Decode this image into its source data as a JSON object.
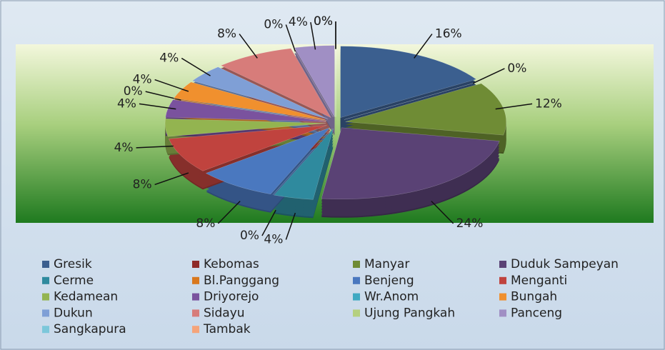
{
  "chart_data": {
    "type": "pie",
    "categories": [
      "Gresik",
      "Kebomas",
      "Manyar",
      "Duduk Sampeyan",
      "Cerme",
      "Bl.Panggang",
      "Benjeng",
      "Menganti",
      "Kedamean",
      "Driyorejo",
      "Wr.Anom",
      "Bungah",
      "Dukun",
      "Sidayu",
      "Ujung Pangkah",
      "Panceng",
      "Sangkapura",
      "Tambak"
    ],
    "values": [
      16,
      0,
      12,
      24,
      4,
      0,
      8,
      8,
      4,
      4,
      0,
      4,
      4,
      8,
      0,
      4,
      0,
      0
    ],
    "value_labels": [
      "16%",
      "0%",
      "12%",
      "24%",
      "4%",
      "0%",
      "8%",
      "8%",
      "4%",
      "4%",
      "0%",
      "4%",
      "4%",
      "8%",
      "0%",
      "4%",
      "0%",
      "0%"
    ],
    "colors": [
      "#3b5f8f",
      "#8e2a28",
      "#6f8c35",
      "#5a4275",
      "#2f8a9e",
      "#d9781e",
      "#4a78bf",
      "#c0433e",
      "#93b450",
      "#7a529e",
      "#3fa9c2",
      "#f0902e",
      "#7f9fd6",
      "#d77c7a",
      "#b5d07f",
      "#a08fc4",
      "#7cc7da",
      "#f5a47a"
    ],
    "legend": "bottom"
  }
}
